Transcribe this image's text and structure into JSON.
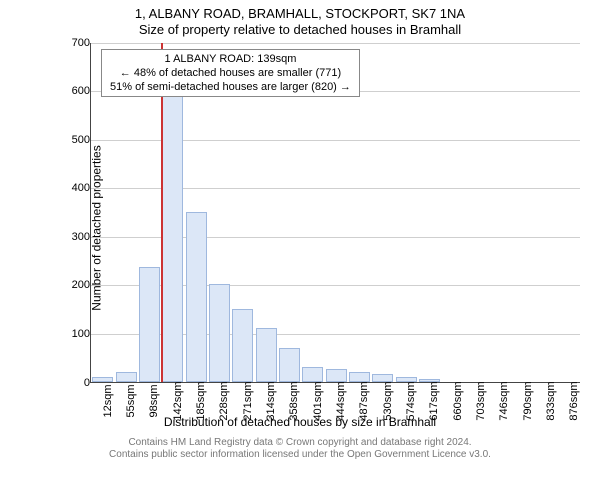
{
  "header": {
    "address": "1, ALBANY ROAD, BRAMHALL, STOCKPORT, SK7 1NA",
    "subtitle": "Size of property relative to detached houses in Bramhall"
  },
  "chart": {
    "type": "histogram",
    "background_color": "#ffffff",
    "grid_color": "#cfcfcf",
    "axis_color": "#444444",
    "bar_fill": "#dce7f7",
    "bar_border": "#9fb8de",
    "reference_line_color": "#cc3333",
    "reference_line_at_category": "142sqm",
    "reference_property_size_sqm": 139,
    "ylim": [
      0,
      700
    ],
    "ytick_step": 100,
    "yticks": [
      0,
      100,
      200,
      300,
      400,
      500,
      600,
      700
    ],
    "y_label": "Number of detached properties",
    "x_label": "Distribution of detached houses by size in Bramhall",
    "categories": [
      "12sqm",
      "55sqm",
      "98sqm",
      "142sqm",
      "185sqm",
      "228sqm",
      "271sqm",
      "314sqm",
      "358sqm",
      "401sqm",
      "444sqm",
      "487sqm",
      "530sqm",
      "574sqm",
      "617sqm",
      "660sqm",
      "703sqm",
      "746sqm",
      "790sqm",
      "833sqm",
      "876sqm"
    ],
    "values": [
      10,
      20,
      235,
      625,
      350,
      200,
      150,
      110,
      70,
      30,
      25,
      20,
      15,
      10,
      5,
      0,
      0,
      0,
      0,
      0,
      0
    ],
    "label_fontsize": 12,
    "tick_fontsize": 11,
    "title_fontsize": 13
  },
  "infobox": {
    "line1": "1 ALBANY ROAD: 139sqm",
    "line2": "← 48% of detached houses are smaller (771)",
    "line3": "51% of semi-detached houses are larger (820) →"
  },
  "attribution": {
    "line1": "Contains HM Land Registry data © Crown copyright and database right 2024.",
    "line2": "Contains public sector information licensed under the Open Government Licence v3.0."
  }
}
